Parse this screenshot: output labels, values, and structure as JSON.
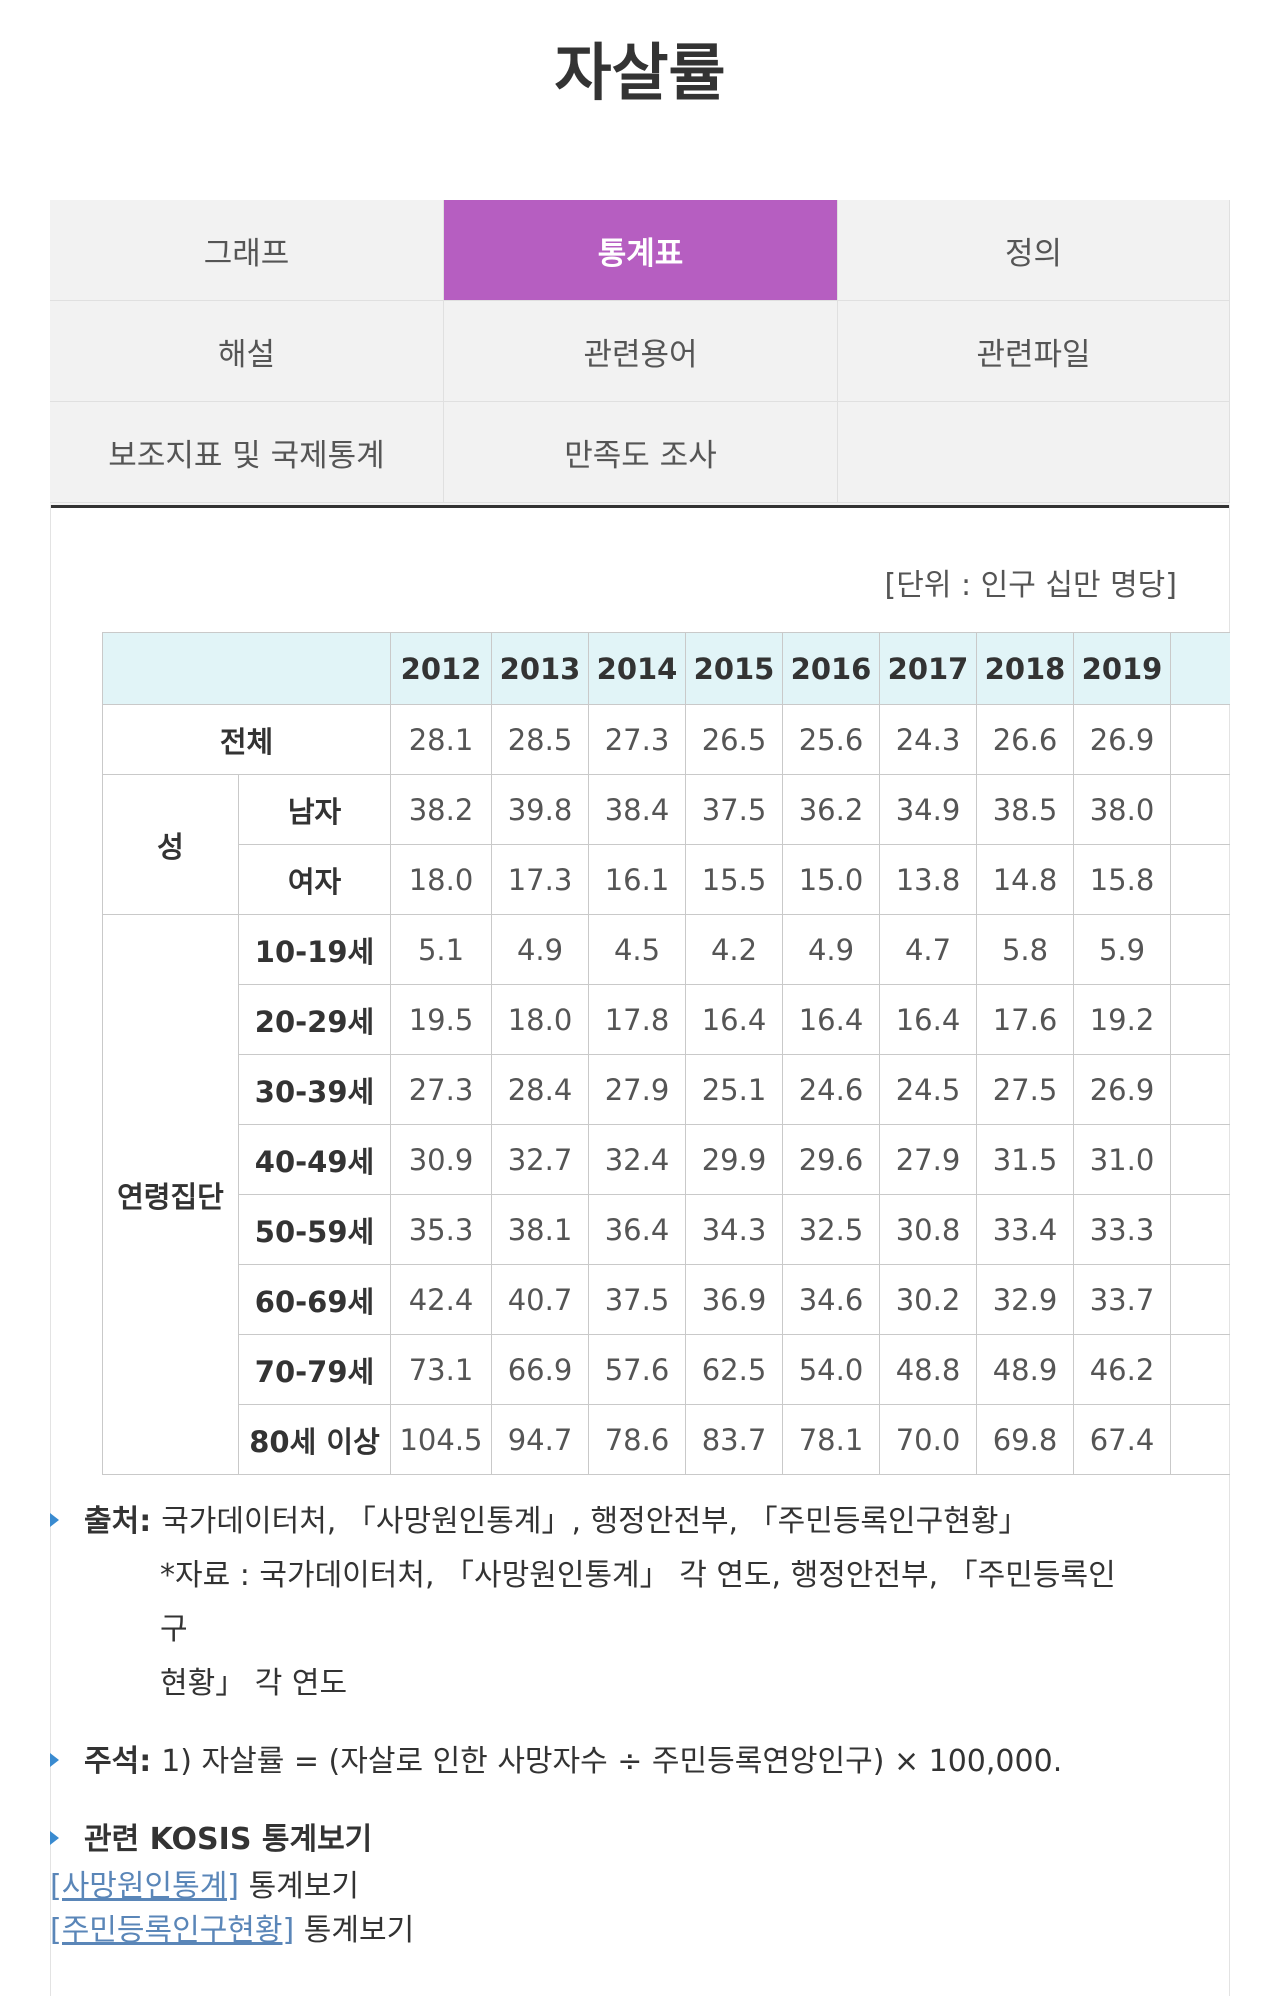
{
  "page": {
    "title": "자살률"
  },
  "tabs": [
    {
      "label": "그래프",
      "active": false
    },
    {
      "label": "통계표",
      "active": true
    },
    {
      "label": "정의",
      "active": false
    },
    {
      "label": "해설",
      "active": false
    },
    {
      "label": "관련용어",
      "active": false
    },
    {
      "label": "관련파일",
      "active": false
    },
    {
      "label": "보조지표 및 국제통계",
      "active": false
    },
    {
      "label": "만족도 조사",
      "active": false
    }
  ],
  "colors": {
    "active_tab": "#b65ec1",
    "table_header": "#e1f4f7",
    "link": "#5a86b8",
    "bullet": "#3a8bd0"
  },
  "table": {
    "unit": "[단위 : 인구 십만 명당]",
    "years": [
      "2012",
      "2013",
      "2014",
      "2015",
      "2016",
      "2017",
      "2018",
      "2019"
    ],
    "total": {
      "label": "전체",
      "values": [
        "28.1",
        "28.5",
        "27.3",
        "26.5",
        "25.6",
        "24.3",
        "26.6",
        "26.9"
      ]
    },
    "sex": {
      "label": "성",
      "rows": [
        {
          "label": "남자",
          "values": [
            "38.2",
            "39.8",
            "38.4",
            "37.5",
            "36.2",
            "34.9",
            "38.5",
            "38.0"
          ]
        },
        {
          "label": "여자",
          "values": [
            "18.0",
            "17.3",
            "16.1",
            "15.5",
            "15.0",
            "13.8",
            "14.8",
            "15.8"
          ]
        }
      ]
    },
    "age": {
      "label": "연령집단",
      "rows": [
        {
          "label": "10-19세",
          "values": [
            "5.1",
            "4.9",
            "4.5",
            "4.2",
            "4.9",
            "4.7",
            "5.8",
            "5.9"
          ]
        },
        {
          "label": "20-29세",
          "values": [
            "19.5",
            "18.0",
            "17.8",
            "16.4",
            "16.4",
            "16.4",
            "17.6",
            "19.2"
          ]
        },
        {
          "label": "30-39세",
          "values": [
            "27.3",
            "28.4",
            "27.9",
            "25.1",
            "24.6",
            "24.5",
            "27.5",
            "26.9"
          ]
        },
        {
          "label": "40-49세",
          "values": [
            "30.9",
            "32.7",
            "32.4",
            "29.9",
            "29.6",
            "27.9",
            "31.5",
            "31.0"
          ]
        },
        {
          "label": "50-59세",
          "values": [
            "35.3",
            "38.1",
            "36.4",
            "34.3",
            "32.5",
            "30.8",
            "33.4",
            "33.3"
          ]
        },
        {
          "label": "60-69세",
          "values": [
            "42.4",
            "40.7",
            "37.5",
            "36.9",
            "34.6",
            "30.2",
            "32.9",
            "33.7"
          ]
        },
        {
          "label": "70-79세",
          "values": [
            "73.1",
            "66.9",
            "57.6",
            "62.5",
            "54.0",
            "48.8",
            "48.9",
            "46.2"
          ]
        },
        {
          "label": "80세 이상",
          "values": [
            "104.5",
            "94.7",
            "78.6",
            "83.7",
            "78.1",
            "70.0",
            "69.8",
            "67.4"
          ]
        }
      ]
    }
  },
  "notes": {
    "source_label": "출처:",
    "source_text": "국가데이터처, 「사망원인통계」, 행정안전부, 「주민등록인구현황」",
    "source_sub_1": "*자료 : 국가데이터처, 「사망원인통계」 각 연도, 행정안전부, 「주민등록인구",
    "source_sub_2": "현황」 각 연도",
    "footnote_label": "주석:",
    "footnote_text": "1) 자살률 = (자살로 인한 사망자수 ÷ 주민등록연앙인구) × 100,000.",
    "kosis_heading": "관련 KOSIS 통계보기"
  },
  "links": [
    {
      "text": "[사망원인통계]",
      "suffix": "통계보기"
    },
    {
      "text": "[주민등록인구현황]",
      "suffix": "통계보기"
    }
  ]
}
